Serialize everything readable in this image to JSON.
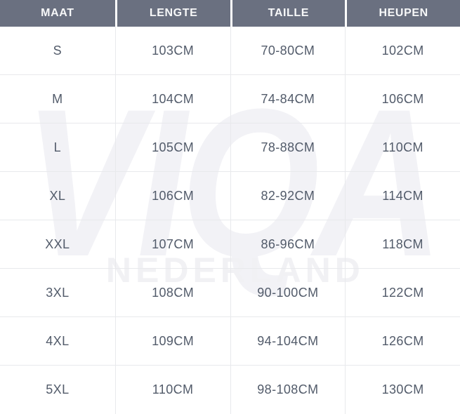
{
  "chart_data": {
    "type": "table",
    "columns": [
      "MAAT",
      "LENGTE",
      "TAILLE",
      "HEUPEN"
    ],
    "rows": [
      [
        "S",
        "103CM",
        "70-80CM",
        "102CM"
      ],
      [
        "M",
        "104CM",
        "74-84CM",
        "106CM"
      ],
      [
        "L",
        "105CM",
        "78-88CM",
        "110CM"
      ],
      [
        "XL",
        "106CM",
        "82-92CM",
        "114CM"
      ],
      [
        "XXL",
        "107CM",
        "86-96CM",
        "118CM"
      ],
      [
        "3XL",
        "108CM",
        "90-100CM",
        "122CM"
      ],
      [
        "4XL",
        "109CM",
        "94-104CM",
        "126CM"
      ],
      [
        "5XL",
        "110CM",
        "98-108CM",
        "130CM"
      ]
    ]
  },
  "watermark": {
    "line1": "VIQA",
    "line2": "NEDERLAND"
  },
  "theme": {
    "header_bg": "#6a7080",
    "header_text": "#f7f8f9",
    "body_text": "#525b6a",
    "grid_border": "#e8e9ec",
    "header_separator": "#ffffff",
    "watermark_color": "#f2f2f6",
    "background": "#ffffff"
  }
}
